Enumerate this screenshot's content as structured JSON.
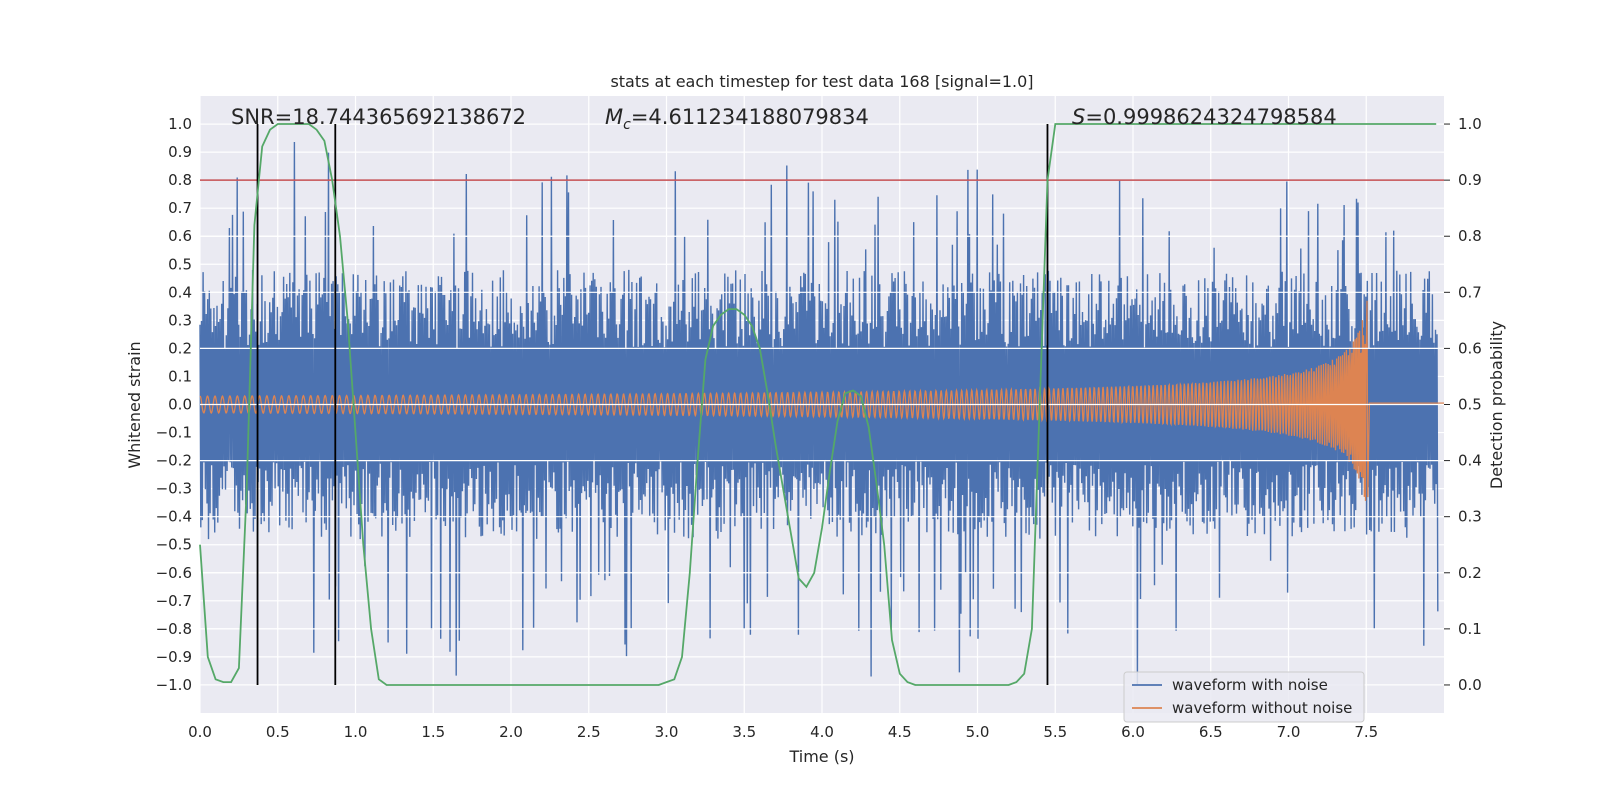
{
  "chart_data": {
    "type": "line",
    "title": "stats at each timestep for test data 168 [signal=1.0]",
    "xlabel": "Time (s)",
    "ylabel": "Whitened strain",
    "y2label": "Detection probability",
    "xlim": [
      0.0,
      8.0
    ],
    "ylim": [
      -1.1,
      1.1
    ],
    "y2lim": [
      -0.05,
      1.05
    ],
    "xticks": [
      "0.0",
      "0.5",
      "1.0",
      "1.5",
      "2.0",
      "2.5",
      "3.0",
      "3.5",
      "4.0",
      "4.5",
      "5.0",
      "5.5",
      "6.0",
      "6.5",
      "7.0",
      "7.5"
    ],
    "yticks": [
      "1.0",
      "0.9",
      "0.8",
      "0.7",
      "0.6",
      "0.5",
      "0.4",
      "0.3",
      "0.2",
      "0.1",
      "0.0",
      "−0.1",
      "−0.2",
      "−0.3",
      "−0.4",
      "−0.5",
      "−0.6",
      "−0.7",
      "−0.8",
      "−0.9",
      "−1.0"
    ],
    "y2ticks": [
      "1.0",
      "0.9",
      "0.8",
      "0.7",
      "0.6",
      "0.5",
      "0.4",
      "0.3",
      "0.2",
      "0.1",
      "0.0"
    ],
    "annotations": {
      "snr": "SNR=18.744365692138672",
      "mc_symbol": "M",
      "mc_sub": "c",
      "mc_value": "=4.611234188079834",
      "s_symbol": "S",
      "s_value": "=0.9998624324798584"
    },
    "threshold": {
      "y2": 0.9,
      "color": "#c44e52"
    },
    "vlines": [
      0.37,
      0.87,
      5.45
    ],
    "noise_envelope": {
      "typical_amplitude": 0.4,
      "max_amplitude": 1.0,
      "samples": 1600
    },
    "chirp": {
      "start_amplitude": 0.03,
      "peak_time": 7.5,
      "peak_amplitude": 0.37,
      "end_time": 7.52
    },
    "series": [
      {
        "name": "waveform with noise",
        "color": "#4c72b0"
      },
      {
        "name": "waveform without noise",
        "color": "#dd8452"
      },
      {
        "name": "detection probability",
        "color": "#55a868",
        "axis": "right",
        "x": [
          0.0,
          0.05,
          0.1,
          0.15,
          0.2,
          0.25,
          0.3,
          0.35,
          0.4,
          0.45,
          0.5,
          0.55,
          0.6,
          0.65,
          0.7,
          0.75,
          0.8,
          0.85,
          0.9,
          0.95,
          1.0,
          1.05,
          1.1,
          1.15,
          1.2,
          1.3,
          2.9,
          2.95,
          3.0,
          3.05,
          3.1,
          3.15,
          3.2,
          3.25,
          3.3,
          3.35,
          3.4,
          3.45,
          3.5,
          3.55,
          3.6,
          3.65,
          3.7,
          3.75,
          3.8,
          3.85,
          3.9,
          3.95,
          4.0,
          4.05,
          4.1,
          4.15,
          4.2,
          4.25,
          4.3,
          4.35,
          4.4,
          4.45,
          4.5,
          4.55,
          4.6,
          5.2,
          5.25,
          5.3,
          5.35,
          5.4,
          5.45,
          5.5,
          7.95
        ],
        "values": [
          0.25,
          0.05,
          0.01,
          0.005,
          0.005,
          0.03,
          0.35,
          0.82,
          0.96,
          0.99,
          1.0,
          1.0,
          1.0,
          1.0,
          1.0,
          0.99,
          0.97,
          0.9,
          0.8,
          0.65,
          0.45,
          0.25,
          0.1,
          0.01,
          0.0,
          0.0,
          0.0,
          0.0,
          0.005,
          0.01,
          0.05,
          0.2,
          0.4,
          0.58,
          0.64,
          0.66,
          0.67,
          0.67,
          0.66,
          0.64,
          0.6,
          0.52,
          0.43,
          0.35,
          0.27,
          0.19,
          0.175,
          0.2,
          0.28,
          0.38,
          0.47,
          0.52,
          0.525,
          0.515,
          0.46,
          0.36,
          0.25,
          0.08,
          0.02,
          0.005,
          0.0,
          0.0,
          0.005,
          0.02,
          0.1,
          0.5,
          0.9,
          1.0,
          1.0
        ]
      }
    ],
    "legend_position": "lower-right"
  }
}
